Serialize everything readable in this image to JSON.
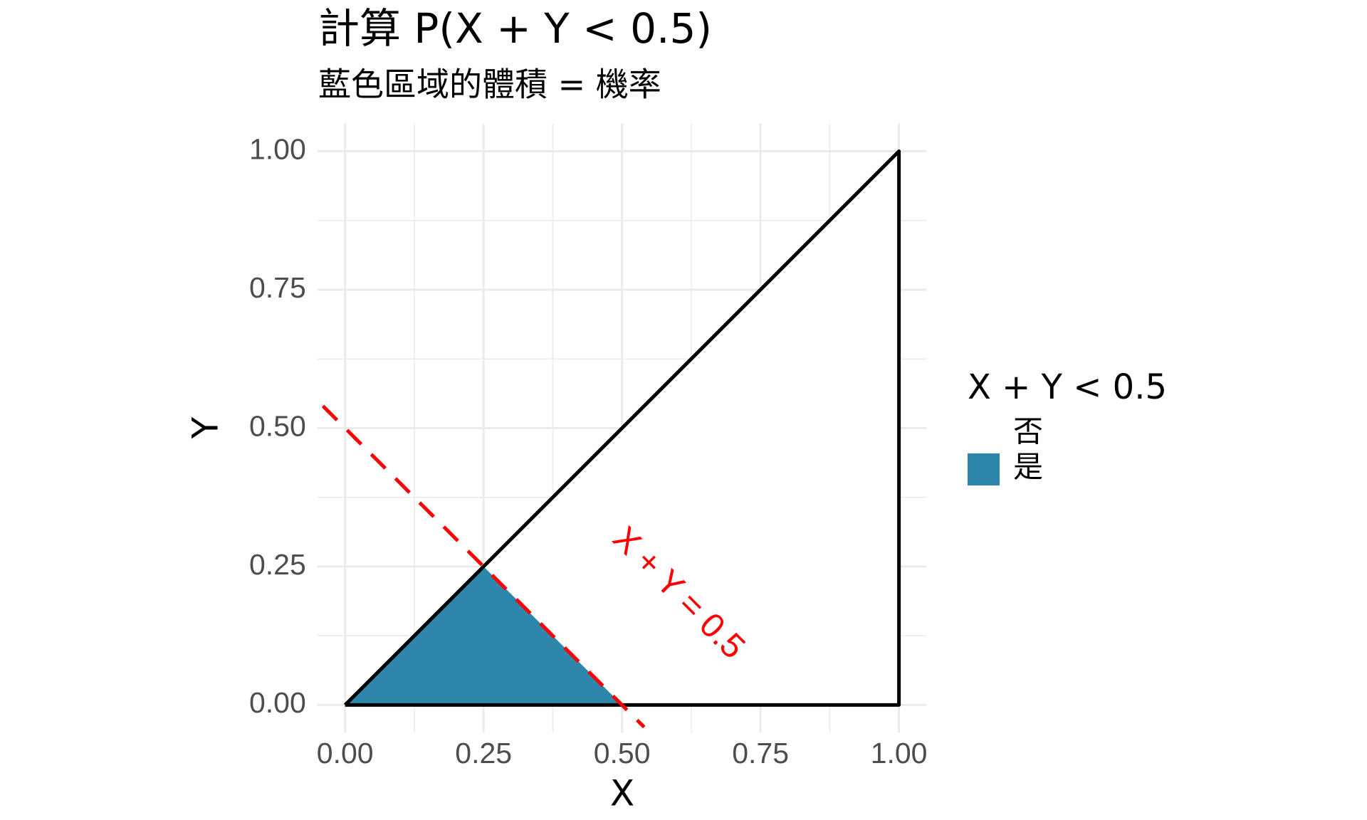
{
  "chart_data": {
    "type": "area",
    "title": "計算 P(X + Y < 0.5)",
    "subtitle": "藍色區域的體積 = 機率",
    "x_label": "X",
    "y_label": "Y",
    "xlim": [
      -0.05,
      1.05
    ],
    "ylim": [
      -0.05,
      1.05
    ],
    "xticks": [
      {
        "value": 0,
        "label": "0.00"
      },
      {
        "value": 0.25,
        "label": "0.25"
      },
      {
        "value": 0.5,
        "label": "0.50"
      },
      {
        "value": 0.75,
        "label": "0.75"
      },
      {
        "value": 1,
        "label": "1.00"
      }
    ],
    "yticks": [
      {
        "value": 0,
        "label": "0.00"
      },
      {
        "value": 0.25,
        "label": "0.25"
      },
      {
        "value": 0.5,
        "label": "0.50"
      },
      {
        "value": 0.75,
        "label": "0.75"
      },
      {
        "value": 1,
        "label": "1.00"
      }
    ],
    "minor_ticks": [
      0.125,
      0.375,
      0.625,
      0.875
    ],
    "grid": true,
    "legend_title": "X + Y < 0.5",
    "series": [
      {
        "name": "否",
        "color": "#ffffff",
        "x": [
          0,
          1,
          1
        ],
        "values": [
          0,
          1,
          0
        ]
      },
      {
        "name": "是",
        "color": "#2e86ab",
        "x": [
          0,
          0.25,
          0.5
        ],
        "values": [
          0,
          0.25,
          0
        ]
      }
    ],
    "outline": {
      "color": "#000000",
      "x": [
        0,
        1,
        1,
        0
      ],
      "values": [
        0,
        1,
        0,
        0
      ]
    },
    "reference_line": {
      "color": "#ff0000",
      "x": [
        -0.04,
        0.54
      ],
      "values": [
        0.54,
        -0.04
      ]
    },
    "annotation": {
      "text": "X + Y = 0.5",
      "x": 0.6,
      "y": 0.2,
      "color": "#ff0000"
    }
  }
}
